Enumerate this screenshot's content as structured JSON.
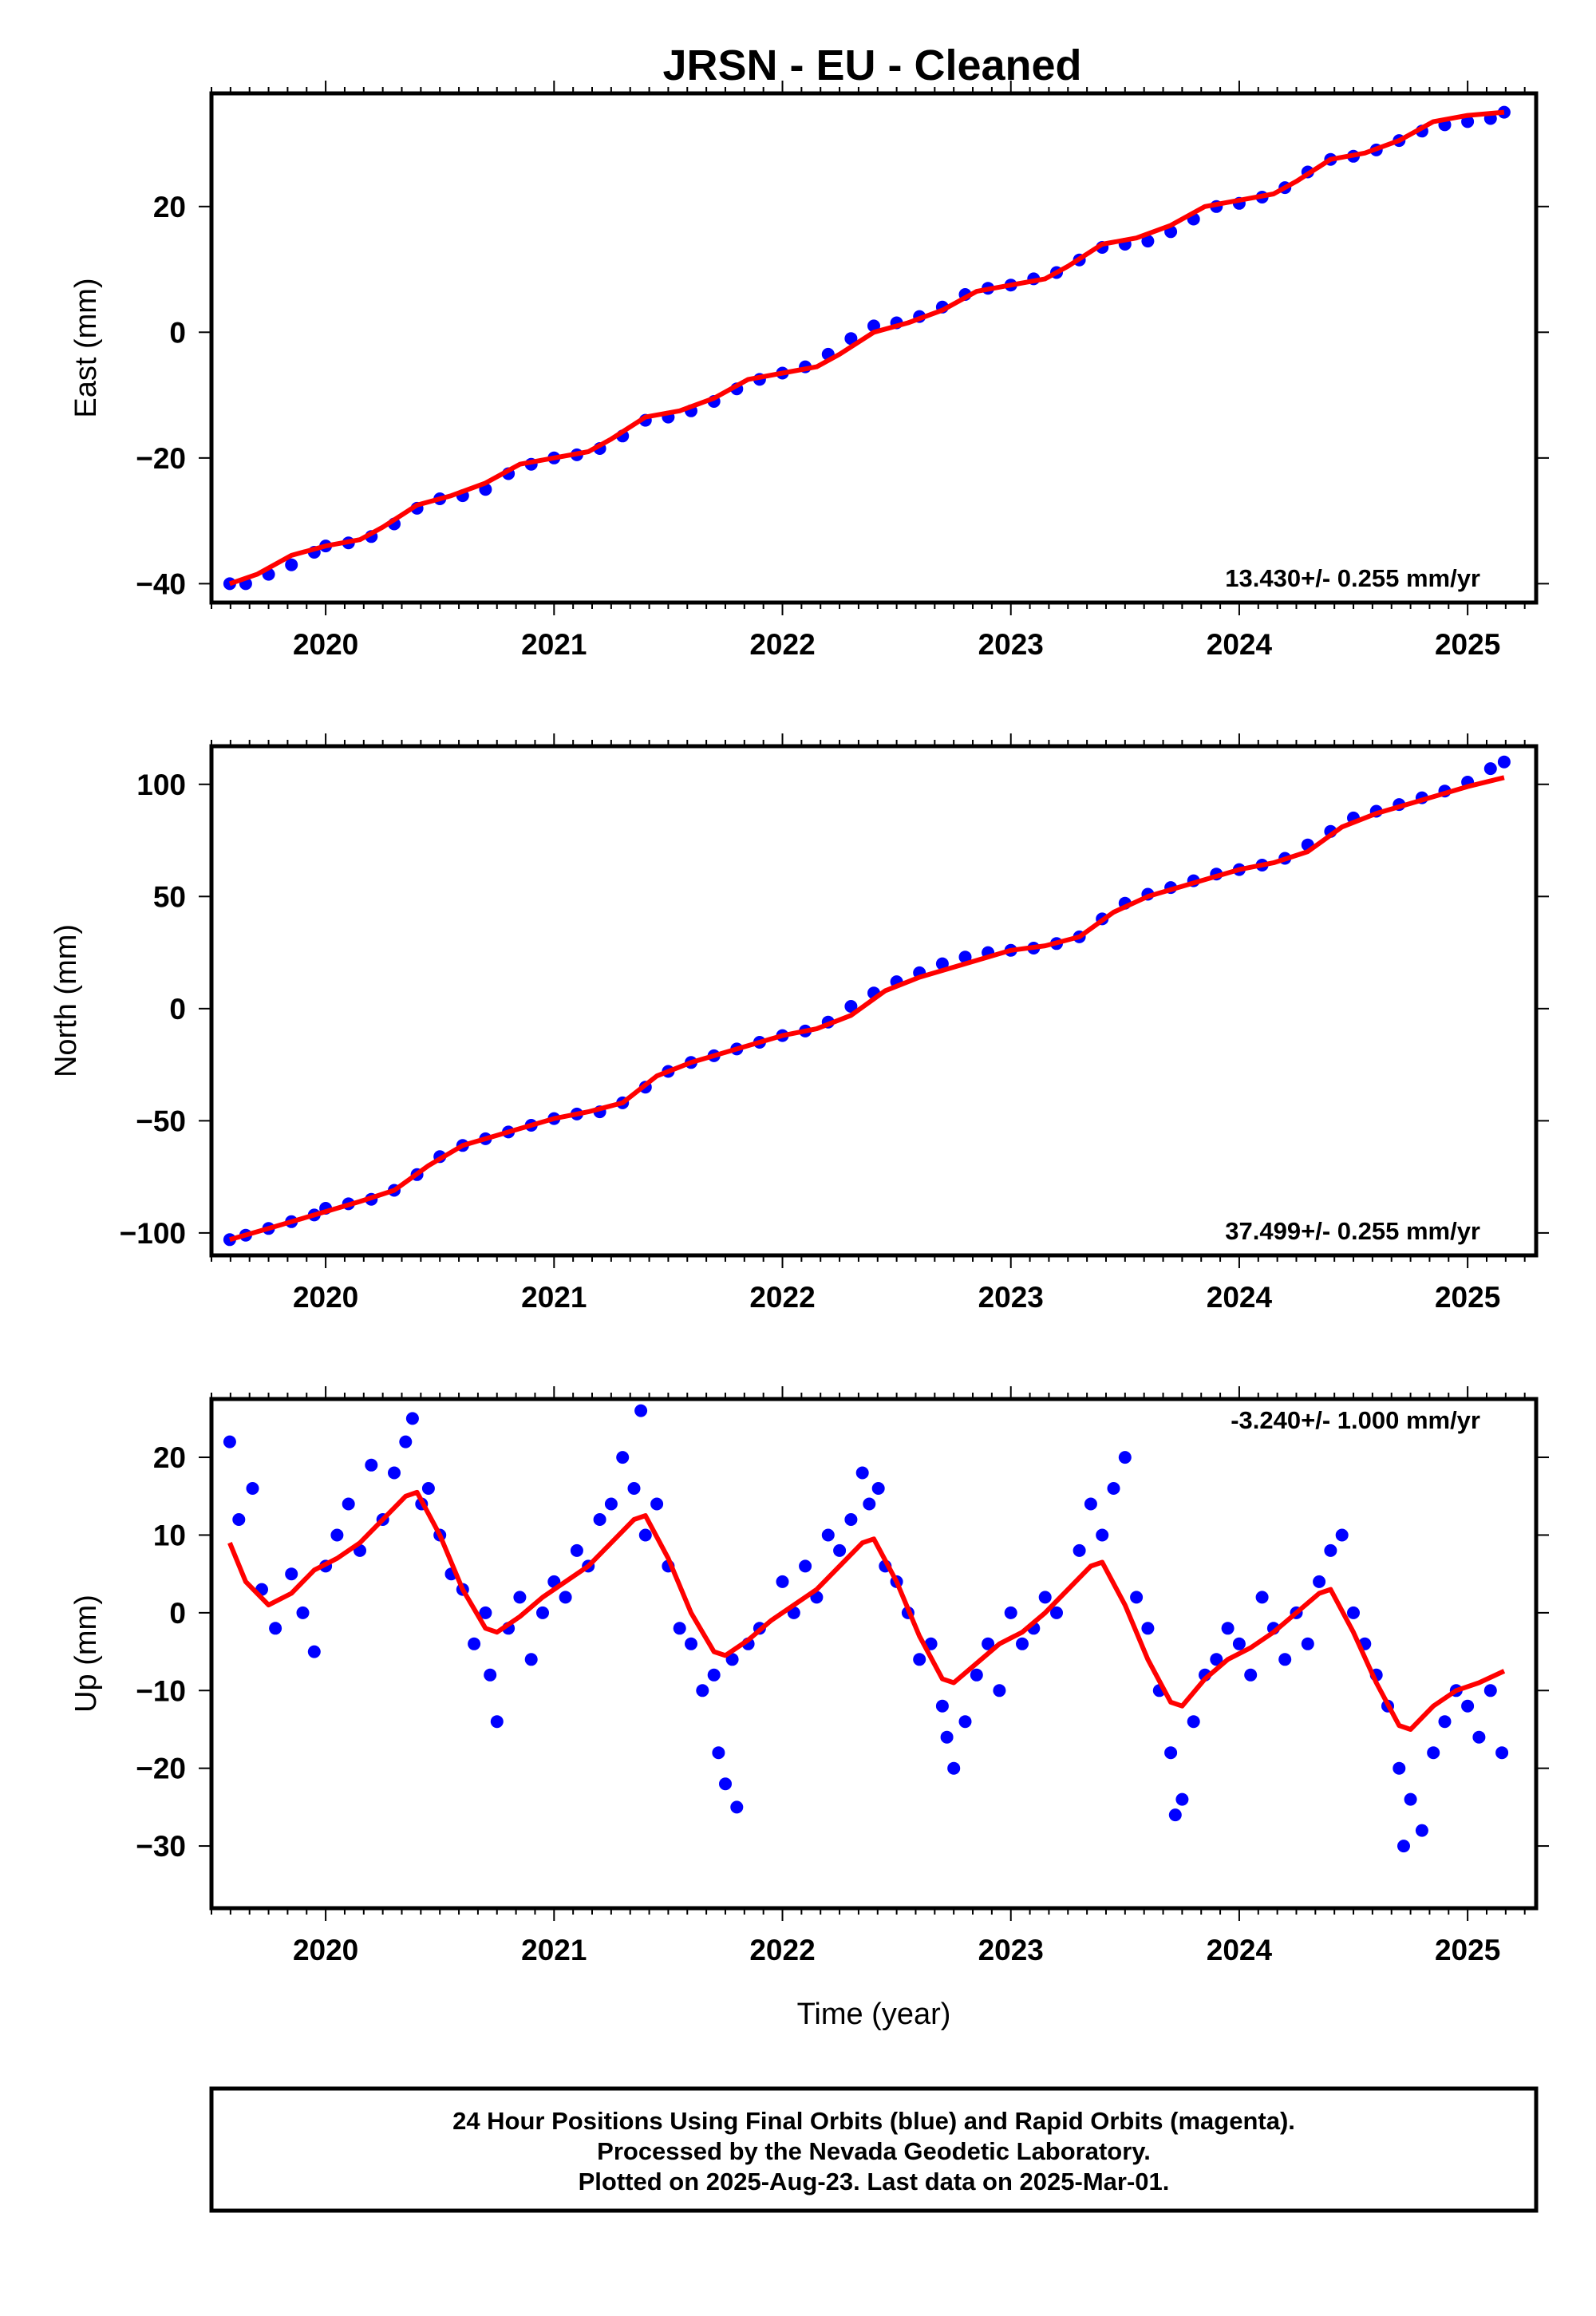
{
  "title": "JRSN  - EU - Cleaned",
  "colors": {
    "data": "#0000ff",
    "model": "#ff0000",
    "frame": "#000000"
  },
  "footer": {
    "lines": [
      "24 Hour Positions Using Final Orbits (blue) and Rapid Orbits (magenta).",
      "Processed by the Nevada Geodetic Laboratory.",
      "Plotted on 2025-Aug-23. Last data on 2025-Mar-01."
    ]
  },
  "chart_data": [
    {
      "type": "scatter",
      "ylabel": "East (mm)",
      "xlabel": "",
      "xlim": [
        2019.5,
        2025.3
      ],
      "ylim": [
        -43,
        38
      ],
      "x_ticks": [
        "2020",
        "2021",
        "2022",
        "2023",
        "2024",
        "2025"
      ],
      "y_ticks": [
        "−40",
        "−20",
        "0",
        "20"
      ],
      "rate_label": "13.430+/- 0.255 mm/yr",
      "rate_position": "bottom-right",
      "series": [
        {
          "kind": "points",
          "color": "#0000ff",
          "x": [
            2019.58,
            2019.65,
            2019.75,
            2019.85,
            2019.95,
            2020.0,
            2020.1,
            2020.2,
            2020.3,
            2020.4,
            2020.5,
            2020.6,
            2020.7,
            2020.8,
            2020.9,
            2021.0,
            2021.1,
            2021.2,
            2021.3,
            2021.4,
            2021.5,
            2021.6,
            2021.7,
            2021.8,
            2021.9,
            2022.0,
            2022.1,
            2022.2,
            2022.3,
            2022.4,
            2022.5,
            2022.6,
            2022.7,
            2022.8,
            2022.9,
            2023.0,
            2023.1,
            2023.2,
            2023.3,
            2023.4,
            2023.5,
            2023.6,
            2023.7,
            2023.8,
            2023.9,
            2024.0,
            2024.1,
            2024.2,
            2024.3,
            2024.4,
            2024.5,
            2024.6,
            2024.7,
            2024.8,
            2024.9,
            2025.0,
            2025.1,
            2025.16
          ],
          "y": [
            -40,
            -40,
            -38.5,
            -37,
            -35,
            -34,
            -33.5,
            -32.5,
            -30.5,
            -28,
            -26.5,
            -26,
            -25,
            -22.5,
            -21,
            -20,
            -19.5,
            -18.5,
            -16.5,
            -14,
            -13.5,
            -12.5,
            -11,
            -9,
            -7.5,
            -6.5,
            -5.5,
            -3.5,
            -1,
            1,
            1.5,
            2.5,
            4,
            6,
            7,
            7.5,
            8.5,
            9.5,
            11.5,
            13.5,
            14,
            14.5,
            16,
            18,
            20,
            20.5,
            21.5,
            23,
            25.5,
            27.5,
            28,
            29,
            30.5,
            32,
            33,
            33.5,
            34,
            35
          ]
        },
        {
          "kind": "line",
          "color": "#ff0000",
          "x": [
            2019.58,
            2019.7,
            2019.85,
            2020.0,
            2020.15,
            2020.25,
            2020.4,
            2020.55,
            2020.7,
            2020.85,
            2021.0,
            2021.15,
            2021.25,
            2021.4,
            2021.55,
            2021.7,
            2021.85,
            2022.0,
            2022.15,
            2022.25,
            2022.4,
            2022.55,
            2022.7,
            2022.85,
            2023.0,
            2023.15,
            2023.25,
            2023.4,
            2023.55,
            2023.7,
            2023.85,
            2024.0,
            2024.15,
            2024.25,
            2024.4,
            2024.55,
            2024.7,
            2024.85,
            2025.0,
            2025.16
          ],
          "y": [
            -40,
            -38.5,
            -35.5,
            -34,
            -33,
            -31,
            -27.5,
            -26,
            -24,
            -21,
            -20,
            -19,
            -17,
            -13.5,
            -12.5,
            -10.5,
            -7.5,
            -6.5,
            -5.5,
            -3.5,
            0,
            1.5,
            3.5,
            6.5,
            7.5,
            8.5,
            10.5,
            14,
            15,
            17,
            20,
            21,
            22,
            24,
            27.5,
            28.5,
            30.5,
            33.5,
            34.5,
            35
          ]
        }
      ]
    },
    {
      "type": "scatter",
      "ylabel": "North (mm)",
      "xlabel": "",
      "xlim": [
        2019.5,
        2025.3
      ],
      "ylim": [
        -110,
        117
      ],
      "x_ticks": [
        "2020",
        "2021",
        "2022",
        "2023",
        "2024",
        "2025"
      ],
      "y_ticks": [
        "−100",
        "−50",
        "0",
        "50",
        "100"
      ],
      "rate_label": "37.499+/- 0.255 mm/yr",
      "rate_position": "bottom-right",
      "series": [
        {
          "kind": "points",
          "color": "#0000ff",
          "x": [
            2019.58,
            2019.65,
            2019.75,
            2019.85,
            2019.95,
            2020.0,
            2020.1,
            2020.2,
            2020.3,
            2020.4,
            2020.5,
            2020.6,
            2020.7,
            2020.8,
            2020.9,
            2021.0,
            2021.1,
            2021.2,
            2021.3,
            2021.4,
            2021.5,
            2021.6,
            2021.7,
            2021.8,
            2021.9,
            2022.0,
            2022.1,
            2022.2,
            2022.3,
            2022.4,
            2022.5,
            2022.6,
            2022.7,
            2022.8,
            2022.9,
            2023.0,
            2023.1,
            2023.2,
            2023.3,
            2023.4,
            2023.5,
            2023.6,
            2023.7,
            2023.8,
            2023.9,
            2024.0,
            2024.1,
            2024.2,
            2024.3,
            2024.4,
            2024.5,
            2024.6,
            2024.7,
            2024.8,
            2024.9,
            2025.0,
            2025.1,
            2025.16
          ],
          "y": [
            -103,
            -101,
            -98,
            -95,
            -92,
            -89,
            -87,
            -85,
            -81,
            -74,
            -66,
            -61,
            -58,
            -55,
            -52,
            -49,
            -47,
            -46,
            -42,
            -35,
            -28,
            -24,
            -21,
            -18,
            -15,
            -12,
            -10,
            -6,
            1,
            7,
            12,
            16,
            20,
            23,
            25,
            26,
            27,
            29,
            32,
            40,
            47,
            51,
            54,
            57,
            60,
            62,
            64,
            67,
            73,
            79,
            85,
            88,
            91,
            94,
            97,
            101,
            107,
            110
          ]
        },
        {
          "kind": "line",
          "color": "#ff0000",
          "x": [
            2019.58,
            2019.75,
            2019.95,
            2020.15,
            2020.3,
            2020.45,
            2020.6,
            2020.8,
            2021.0,
            2021.15,
            2021.3,
            2021.45,
            2021.6,
            2021.8,
            2022.0,
            2022.15,
            2022.3,
            2022.45,
            2022.6,
            2022.8,
            2023.0,
            2023.15,
            2023.3,
            2023.45,
            2023.6,
            2023.8,
            2024.0,
            2024.15,
            2024.3,
            2024.45,
            2024.6,
            2024.8,
            2025.0,
            2025.16
          ],
          "y": [
            -103,
            -98,
            -92,
            -86,
            -81,
            -70,
            -61,
            -55,
            -49,
            -46,
            -42,
            -30,
            -24,
            -18,
            -12,
            -9,
            -3,
            8,
            14,
            20,
            26,
            28,
            32,
            43,
            50,
            56,
            62,
            65,
            70,
            81,
            87,
            93,
            99,
            103
          ]
        }
      ]
    },
    {
      "type": "scatter",
      "ylabel": "Up (mm)",
      "xlabel": "Time (year)",
      "xlim": [
        2019.5,
        2025.3
      ],
      "ylim": [
        -38,
        27.5
      ],
      "x_ticks": [
        "2020",
        "2021",
        "2022",
        "2023",
        "2024",
        "2025"
      ],
      "y_ticks": [
        "−30",
        "−20",
        "−10",
        "0",
        "10",
        "20"
      ],
      "rate_label": "-3.240+/- 1.000 mm/yr",
      "rate_position": "top-right",
      "series": [
        {
          "kind": "points",
          "color": "#0000ff",
          "x": [
            2019.58,
            2019.62,
            2019.68,
            2019.72,
            2019.78,
            2019.85,
            2019.9,
            2019.95,
            2020.0,
            2020.05,
            2020.1,
            2020.15,
            2020.2,
            2020.25,
            2020.3,
            2020.35,
            2020.38,
            2020.42,
            2020.45,
            2020.5,
            2020.55,
            2020.6,
            2020.65,
            2020.7,
            2020.72,
            2020.75,
            2020.8,
            2020.85,
            2020.9,
            2020.95,
            2021.0,
            2021.05,
            2021.1,
            2021.15,
            2021.2,
            2021.25,
            2021.3,
            2021.35,
            2021.38,
            2021.4,
            2021.45,
            2021.5,
            2021.55,
            2021.6,
            2021.65,
            2021.7,
            2021.72,
            2021.75,
            2021.78,
            2021.8,
            2021.85,
            2021.9,
            2022.0,
            2022.05,
            2022.1,
            2022.15,
            2022.2,
            2022.25,
            2022.3,
            2022.35,
            2022.38,
            2022.42,
            2022.45,
            2022.5,
            2022.55,
            2022.6,
            2022.65,
            2022.7,
            2022.72,
            2022.75,
            2022.8,
            2022.85,
            2022.9,
            2022.95,
            2023.0,
            2023.05,
            2023.1,
            2023.15,
            2023.2,
            2023.3,
            2023.35,
            2023.4,
            2023.45,
            2023.5,
            2023.55,
            2023.6,
            2023.65,
            2023.7,
            2023.72,
            2023.75,
            2023.8,
            2023.85,
            2023.9,
            2023.95,
            2024.0,
            2024.05,
            2024.1,
            2024.15,
            2024.2,
            2024.25,
            2024.3,
            2024.35,
            2024.4,
            2024.45,
            2024.5,
            2024.55,
            2024.6,
            2024.65,
            2024.7,
            2024.72,
            2024.75,
            2024.8,
            2024.85,
            2024.9,
            2024.95,
            2025.0,
            2025.05,
            2025.1,
            2025.15
          ],
          "y": [
            22,
            12,
            16,
            3,
            -2,
            5,
            0,
            -5,
            6,
            10,
            14,
            8,
            19,
            12,
            18,
            22,
            25,
            14,
            16,
            10,
            5,
            3,
            -4,
            0,
            -8,
            -14,
            -2,
            2,
            -6,
            0,
            4,
            2,
            8,
            6,
            12,
            14,
            20,
            16,
            26,
            10,
            14,
            6,
            -2,
            -4,
            -10,
            -8,
            -18,
            -22,
            -6,
            -25,
            -4,
            -2,
            4,
            0,
            6,
            2,
            10,
            8,
            12,
            18,
            14,
            16,
            6,
            4,
            0,
            -6,
            -4,
            -12,
            -16,
            -20,
            -14,
            -8,
            -4,
            -10,
            0,
            -4,
            -2,
            2,
            0,
            8,
            14,
            10,
            16,
            20,
            2,
            -2,
            -10,
            -18,
            -26,
            -24,
            -14,
            -8,
            -6,
            -2,
            -4,
            -8,
            2,
            -2,
            -6,
            0,
            -4,
            4,
            8,
            10,
            0,
            -4,
            -8,
            -12,
            -20,
            -30,
            -24,
            -28,
            -18,
            -14,
            -10,
            -12,
            -16,
            -10,
            -18
          ]
        },
        {
          "kind": "line",
          "color": "#ff0000",
          "x": [
            2019.58,
            2019.65,
            2019.75,
            2019.85,
            2019.95,
            2020.05,
            2020.15,
            2020.25,
            2020.35,
            2020.4,
            2020.5,
            2020.6,
            2020.7,
            2020.75,
            2020.85,
            2020.95,
            2021.05,
            2021.15,
            2021.25,
            2021.35,
            2021.4,
            2021.5,
            2021.6,
            2021.7,
            2021.75,
            2021.85,
            2021.95,
            2022.05,
            2022.15,
            2022.25,
            2022.35,
            2022.4,
            2022.5,
            2022.6,
            2022.7,
            2022.75,
            2022.85,
            2022.95,
            2023.05,
            2023.15,
            2023.25,
            2023.35,
            2023.4,
            2023.5,
            2023.6,
            2023.7,
            2023.75,
            2023.85,
            2023.95,
            2024.05,
            2024.15,
            2024.25,
            2024.35,
            2024.4,
            2024.5,
            2024.6,
            2024.7,
            2024.75,
            2024.85,
            2024.95,
            2025.05,
            2025.16
          ],
          "y": [
            9,
            4,
            1,
            2.5,
            5.5,
            7,
            9,
            12,
            15,
            15.5,
            10,
            3,
            -2,
            -2.5,
            -0.5,
            2,
            4,
            6,
            9,
            12,
            12.5,
            7,
            0,
            -5,
            -5.5,
            -3.5,
            -1,
            1,
            3,
            6,
            9,
            9.5,
            4,
            -3,
            -8.5,
            -9,
            -6.5,
            -4,
            -2.5,
            0,
            3,
            6,
            6.5,
            1,
            -6,
            -11.5,
            -12,
            -8.5,
            -6,
            -4.5,
            -2.5,
            0,
            2.5,
            3,
            -2.5,
            -9,
            -14.5,
            -15,
            -12,
            -10,
            -9,
            -7.5
          ]
        }
      ]
    }
  ]
}
